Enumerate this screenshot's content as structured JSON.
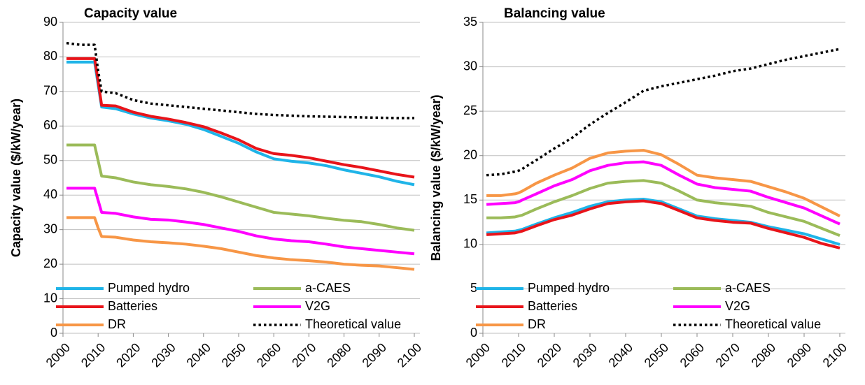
{
  "chart_data": [
    {
      "type": "line",
      "title": "Capacity value",
      "y_label": "Capacity value ($/kW/year)",
      "x": [
        2001,
        2005,
        2009,
        2010,
        2011,
        2015,
        2020,
        2025,
        2030,
        2035,
        2040,
        2045,
        2050,
        2055,
        2060,
        2065,
        2070,
        2075,
        2080,
        2085,
        2090,
        2095,
        2100
      ],
      "xlim": [
        2000,
        2100
      ],
      "xticks": [
        2000,
        2010,
        2020,
        2030,
        2040,
        2050,
        2060,
        2070,
        2080,
        2090,
        2100
      ],
      "ylim": [
        0,
        90
      ],
      "yticks": [
        0,
        10,
        20,
        30,
        40,
        50,
        60,
        70,
        80,
        90
      ],
      "grid": true,
      "series": [
        {
          "name": "Pumped hydro",
          "color": "#1fb4e8",
          "values": [
            78.5,
            78.5,
            78.5,
            72,
            65.5,
            65,
            63.5,
            62.3,
            61.5,
            60.5,
            59,
            57,
            55,
            52.5,
            50.5,
            49.8,
            49.3,
            48.5,
            47.3,
            46.3,
            45.3,
            44,
            43
          ]
        },
        {
          "name": "a-CAES",
          "color": "#9bbb59",
          "values": [
            54.5,
            54.5,
            54.5,
            50,
            45.5,
            45,
            43.8,
            43,
            42.5,
            41.8,
            40.8,
            39.5,
            38,
            36.5,
            35,
            34.5,
            34,
            33.3,
            32.7,
            32.3,
            31.5,
            30.5,
            29.8
          ]
        },
        {
          "name": "Batteries",
          "color": "#e8141a",
          "values": [
            79.5,
            79.5,
            79.5,
            73,
            66,
            65.8,
            64,
            62.8,
            62,
            61,
            59.8,
            58,
            56,
            53.5,
            52,
            51.5,
            50.8,
            49.8,
            48.8,
            48,
            47,
            46,
            45.2
          ]
        },
        {
          "name": "V2G",
          "color": "#ff00ff",
          "values": [
            42,
            42,
            42,
            38.5,
            35,
            34.7,
            33.7,
            33,
            32.8,
            32.2,
            31.5,
            30.5,
            29.5,
            28.2,
            27.3,
            26.8,
            26.5,
            25.8,
            25,
            24.5,
            24,
            23.5,
            23
          ]
        },
        {
          "name": "DR",
          "color": "#f79646",
          "values": [
            33.5,
            33.5,
            33.5,
            30.5,
            28,
            27.8,
            27,
            26.5,
            26.2,
            25.8,
            25.2,
            24.5,
            23.5,
            22.5,
            21.8,
            21.3,
            21,
            20.6,
            20,
            19.7,
            19.5,
            19,
            18.5
          ]
        },
        {
          "name": "Theoretical value",
          "color": "#000000",
          "dotted": true,
          "values": [
            84,
            83.5,
            83.5,
            76,
            70,
            69.5,
            67.5,
            66.5,
            66,
            65.5,
            65,
            64.5,
            64,
            63.5,
            63.2,
            63,
            62.8,
            62.7,
            62.6,
            62.5,
            62.4,
            62.3,
            62.3
          ]
        }
      ]
    },
    {
      "type": "line",
      "title": "Balancing value",
      "y_label": "Balancing value ($/kW/year)",
      "x": [
        2001,
        2005,
        2009,
        2010,
        2011,
        2015,
        2020,
        2025,
        2030,
        2035,
        2040,
        2045,
        2050,
        2055,
        2060,
        2065,
        2070,
        2075,
        2080,
        2085,
        2090,
        2095,
        2100
      ],
      "xlim": [
        2000,
        2100
      ],
      "xticks": [
        2000,
        2010,
        2020,
        2030,
        2040,
        2050,
        2060,
        2070,
        2080,
        2090,
        2100
      ],
      "ylim": [
        0,
        35
      ],
      "yticks": [
        0,
        5,
        10,
        15,
        20,
        25,
        30,
        35
      ],
      "grid": true,
      "series": [
        {
          "name": "Pumped hydro",
          "color": "#1fb4e8",
          "values": [
            11.3,
            11.4,
            11.5,
            11.6,
            11.7,
            12.3,
            13,
            13.6,
            14.3,
            14.8,
            15,
            15.1,
            14.8,
            14,
            13.2,
            12.9,
            12.7,
            12.5,
            12,
            11.6,
            11.2,
            10.6,
            10
          ]
        },
        {
          "name": "a-CAES",
          "color": "#9bbb59",
          "values": [
            13,
            13,
            13.1,
            13.2,
            13.3,
            14,
            14.8,
            15.5,
            16.3,
            16.9,
            17.1,
            17.2,
            16.9,
            16,
            15,
            14.7,
            14.5,
            14.3,
            13.6,
            13.1,
            12.6,
            11.8,
            11
          ]
        },
        {
          "name": "Batteries",
          "color": "#e8141a",
          "values": [
            11.1,
            11.2,
            11.3,
            11.4,
            11.5,
            12.1,
            12.8,
            13.3,
            14,
            14.6,
            14.8,
            14.9,
            14.6,
            13.8,
            13,
            12.7,
            12.5,
            12.4,
            11.8,
            11.3,
            10.8,
            10.1,
            9.6
          ]
        },
        {
          "name": "V2G",
          "color": "#ff00ff",
          "values": [
            14.5,
            14.6,
            14.7,
            14.8,
            15,
            15.7,
            16.6,
            17.3,
            18.3,
            18.9,
            19.2,
            19.3,
            18.9,
            17.8,
            16.8,
            16.4,
            16.2,
            16,
            15.3,
            14.7,
            14.1,
            13.2,
            12.3
          ]
        },
        {
          "name": "DR",
          "color": "#f79646",
          "values": [
            15.5,
            15.5,
            15.7,
            15.8,
            16,
            16.9,
            17.8,
            18.6,
            19.7,
            20.3,
            20.5,
            20.6,
            20.1,
            19,
            17.8,
            17.5,
            17.3,
            17.1,
            16.5,
            15.9,
            15.2,
            14.2,
            13.2
          ]
        },
        {
          "name": "Theoretical value",
          "color": "#000000",
          "dotted": true,
          "values": [
            17.8,
            17.9,
            18.2,
            18.3,
            18.5,
            19.5,
            20.8,
            22,
            23.5,
            24.8,
            26,
            27.3,
            27.8,
            28.2,
            28.6,
            29,
            29.5,
            29.8,
            30.3,
            30.8,
            31.2,
            31.6,
            32
          ]
        }
      ]
    }
  ]
}
